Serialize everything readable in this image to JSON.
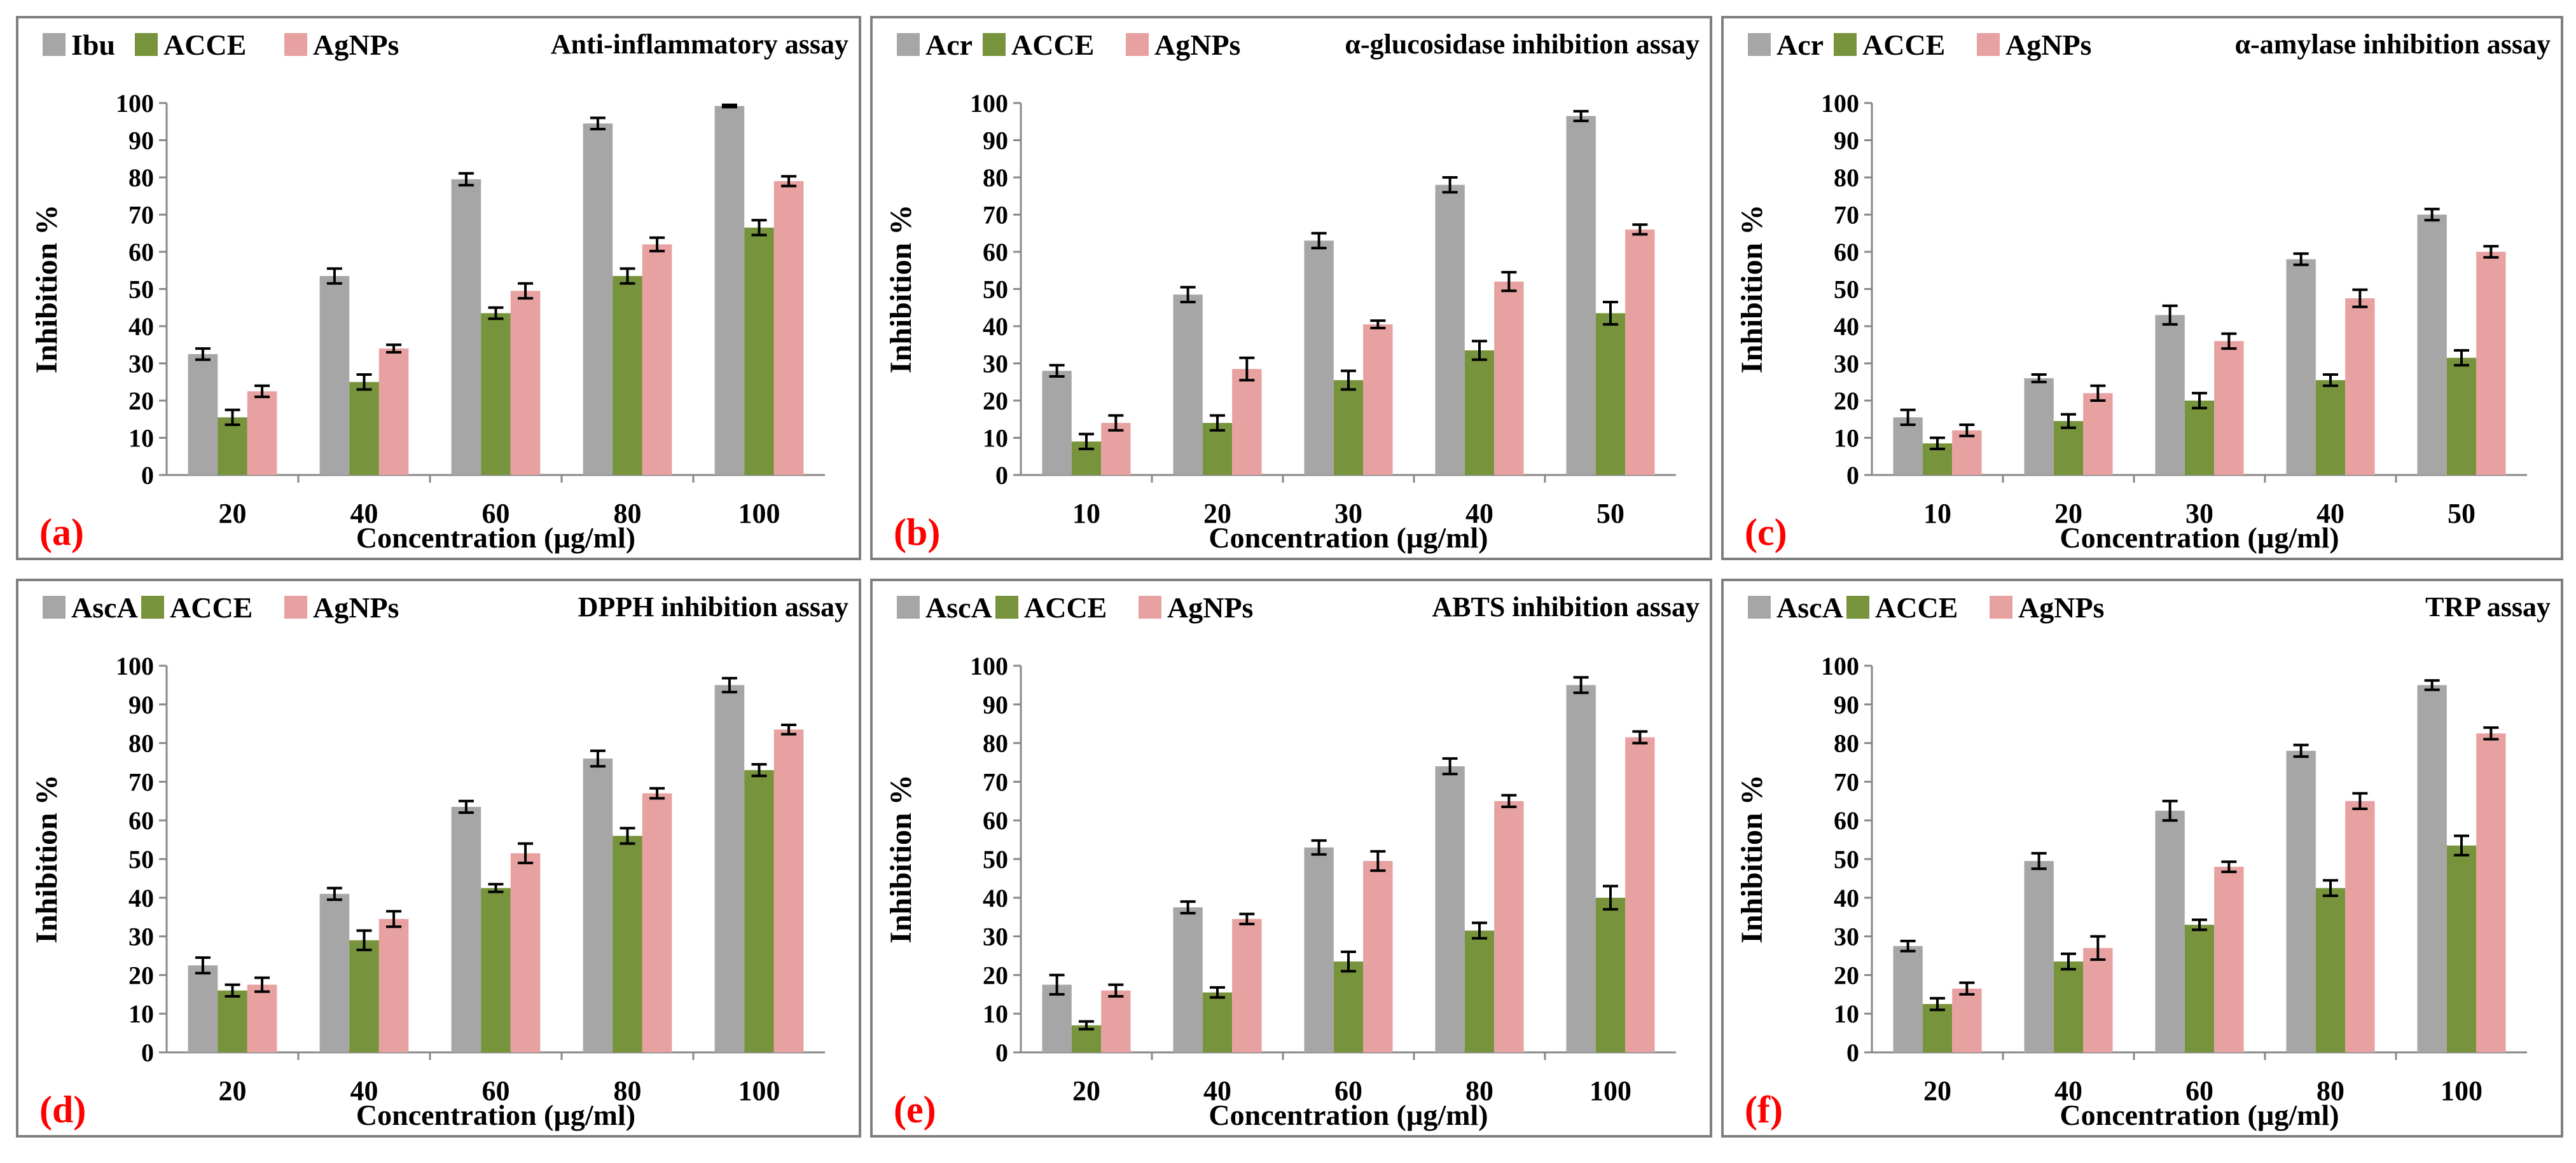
{
  "colors": {
    "reference": "#a6a6a6",
    "acce": "#77933c",
    "agnps": "#e6a1a0",
    "panel_letter": "#ff0000",
    "axis": "#888888",
    "frame": "#7f7f7f"
  },
  "chart_data": [
    {
      "type": "bar",
      "panel_label": "(a)",
      "title": "Anti-inflammatory  assay",
      "xlabel": "Concentration (µg/ml)",
      "ylabel": "Inhibition  %",
      "ylim": [
        0,
        100
      ],
      "yticks": [
        "0",
        "10",
        "20",
        "30",
        "40",
        "50",
        "60",
        "70",
        "80",
        "90",
        "100"
      ],
      "grid": false,
      "legend_position": "top-left",
      "categories": [
        "20",
        "40",
        "60",
        "80",
        "100"
      ],
      "series": [
        {
          "name": "Ibu",
          "color_key": "reference",
          "values": [
            32.5,
            53.5,
            79.5,
            94.5,
            99.2
          ],
          "errors": [
            1.5,
            2.0,
            1.6,
            1.5,
            0.3
          ]
        },
        {
          "name": "ACCE",
          "color_key": "acce",
          "values": [
            15.5,
            25.0,
            43.5,
            53.5,
            66.5
          ],
          "errors": [
            2.0,
            2.0,
            1.5,
            2.0,
            2.0
          ]
        },
        {
          "name": "AgNPs",
          "color_key": "agnps",
          "values": [
            22.5,
            34.0,
            49.5,
            62.0,
            79.0
          ],
          "errors": [
            1.5,
            1.0,
            2.0,
            1.8,
            1.3
          ]
        }
      ]
    },
    {
      "type": "bar",
      "panel_label": "(b)",
      "title": "α-glucosidase inhibition  assay",
      "xlabel": "Concentration (µg/ml)",
      "ylabel": "Inhibition  %",
      "ylim": [
        0,
        100
      ],
      "yticks": [
        "0",
        "10",
        "20",
        "30",
        "40",
        "50",
        "60",
        "70",
        "80",
        "90",
        "100"
      ],
      "grid": false,
      "legend_position": "top-left",
      "categories": [
        "10",
        "20",
        "30",
        "40",
        "50"
      ],
      "series": [
        {
          "name": "Acr",
          "color_key": "reference",
          "values": [
            28.0,
            48.5,
            63.0,
            78.0,
            96.5
          ],
          "errors": [
            1.5,
            2.0,
            2.0,
            2.0,
            1.3
          ]
        },
        {
          "name": "ACCE",
          "color_key": "acce",
          "values": [
            9.0,
            14.0,
            25.5,
            33.5,
            43.5
          ],
          "errors": [
            2.0,
            2.0,
            2.5,
            2.5,
            3.0
          ]
        },
        {
          "name": "AgNPs",
          "color_key": "agnps",
          "values": [
            14.0,
            28.5,
            40.5,
            52.0,
            66.0
          ],
          "errors": [
            2.0,
            3.0,
            1.0,
            2.5,
            1.3
          ]
        }
      ]
    },
    {
      "type": "bar",
      "panel_label": "(c)",
      "title": "α-amylase inhibition  assay",
      "xlabel": "Concentration (µg/ml)",
      "ylabel": "Inhibition  %",
      "ylim": [
        0,
        100
      ],
      "yticks": [
        "0",
        "10",
        "20",
        "30",
        "40",
        "50",
        "60",
        "70",
        "80",
        "90",
        "100"
      ],
      "grid": false,
      "legend_position": "top-left",
      "categories": [
        "10",
        "20",
        "30",
        "40",
        "50"
      ],
      "series": [
        {
          "name": "Acr",
          "color_key": "reference",
          "values": [
            15.5,
            26.0,
            43.0,
            58.0,
            70.0
          ],
          "errors": [
            2.0,
            1.0,
            2.5,
            1.5,
            1.5
          ]
        },
        {
          "name": "ACCE",
          "color_key": "acce",
          "values": [
            8.5,
            14.5,
            20.0,
            25.5,
            31.5
          ],
          "errors": [
            1.5,
            1.8,
            2.0,
            1.5,
            2.0
          ]
        },
        {
          "name": "AgNPs",
          "color_key": "agnps",
          "values": [
            12.0,
            22.0,
            36.0,
            47.5,
            60.0
          ],
          "errors": [
            1.5,
            2.0,
            2.0,
            2.3,
            1.5
          ]
        }
      ]
    },
    {
      "type": "bar",
      "panel_label": "(d)",
      "title": "DPPH inhibition  assay",
      "xlabel": "Concentration (µg/ml)",
      "ylabel": "Inhibition  %",
      "ylim": [
        0,
        100
      ],
      "yticks": [
        "0",
        "10",
        "20",
        "30",
        "40",
        "50",
        "60",
        "70",
        "80",
        "90",
        "100"
      ],
      "grid": false,
      "legend_position": "top-left",
      "categories": [
        "20",
        "40",
        "60",
        "80",
        "100"
      ],
      "series": [
        {
          "name": "AscA",
          "color_key": "reference",
          "values": [
            22.5,
            41.0,
            63.5,
            76.0,
            95.0
          ],
          "errors": [
            2.0,
            1.5,
            1.5,
            2.0,
            1.8
          ]
        },
        {
          "name": "ACCE",
          "color_key": "acce",
          "values": [
            16.0,
            29.0,
            42.5,
            56.0,
            73.0
          ],
          "errors": [
            1.5,
            2.5,
            1.0,
            2.0,
            1.5
          ]
        },
        {
          "name": "AgNPs",
          "color_key": "agnps",
          "values": [
            17.5,
            34.5,
            51.5,
            67.0,
            83.5
          ],
          "errors": [
            1.8,
            2.0,
            2.5,
            1.3,
            1.2
          ]
        }
      ]
    },
    {
      "type": "bar",
      "panel_label": "(e)",
      "title": "ABTS inhibition  assay",
      "xlabel": "Concentration (µg/ml)",
      "ylabel": "Inhibition  %",
      "ylim": [
        0,
        100
      ],
      "yticks": [
        "0",
        "10",
        "20",
        "30",
        "40",
        "50",
        "60",
        "70",
        "80",
        "90",
        "100"
      ],
      "grid": false,
      "legend_position": "top-left",
      "categories": [
        "20",
        "40",
        "60",
        "80",
        "100"
      ],
      "series": [
        {
          "name": "AscA",
          "color_key": "reference",
          "values": [
            17.5,
            37.5,
            53.0,
            74.0,
            95.0
          ],
          "errors": [
            2.5,
            1.5,
            1.8,
            2.0,
            2.0
          ]
        },
        {
          "name": "ACCE",
          "color_key": "acce",
          "values": [
            7.0,
            15.5,
            23.5,
            31.5,
            40.0
          ],
          "errors": [
            1.0,
            1.3,
            2.5,
            2.0,
            3.0
          ]
        },
        {
          "name": "AgNPs",
          "color_key": "agnps",
          "values": [
            16.0,
            34.5,
            49.5,
            65.0,
            81.5
          ],
          "errors": [
            1.5,
            1.3,
            2.5,
            1.5,
            1.5
          ]
        }
      ]
    },
    {
      "type": "bar",
      "panel_label": "(f)",
      "title": "TRP assay",
      "xlabel": "Concentration (µg/ml)",
      "ylabel": "Inhibition  %",
      "ylim": [
        0,
        100
      ],
      "yticks": [
        "0",
        "10",
        "20",
        "30",
        "40",
        "50",
        "60",
        "70",
        "80",
        "90",
        "100"
      ],
      "grid": false,
      "legend_position": "top-left",
      "categories": [
        "20",
        "40",
        "60",
        "80",
        "100"
      ],
      "series": [
        {
          "name": "AscA",
          "color_key": "reference",
          "values": [
            27.5,
            49.5,
            62.5,
            78.0,
            95.0
          ],
          "errors": [
            1.3,
            2.0,
            2.5,
            1.5,
            1.2
          ]
        },
        {
          "name": "ACCE",
          "color_key": "acce",
          "values": [
            12.5,
            23.5,
            33.0,
            42.5,
            53.5
          ],
          "errors": [
            1.5,
            2.0,
            1.3,
            2.0,
            2.5
          ]
        },
        {
          "name": "AgNPs",
          "color_key": "agnps",
          "values": [
            16.5,
            27.0,
            48.0,
            65.0,
            82.5
          ],
          "errors": [
            1.5,
            3.0,
            1.3,
            2.0,
            1.5
          ]
        }
      ]
    }
  ]
}
